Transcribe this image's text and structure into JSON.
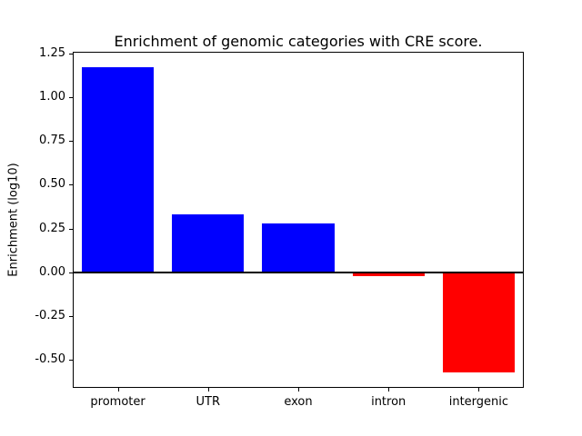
{
  "figure": {
    "background": "#ffffff"
  },
  "chart_data": {
    "type": "bar",
    "title": "Enrichment of genomic categories with CRE score.",
    "xlabel": "",
    "ylabel": "Enrichment (log10)",
    "categories": [
      "promoter",
      "UTR",
      "exon",
      "intron",
      "intergenic"
    ],
    "values": [
      1.17,
      0.33,
      0.28,
      -0.02,
      -0.57
    ],
    "positive_color": "#0000ff",
    "negative_color": "#ff0000",
    "zero_line_color": "#000000",
    "ylim": [
      -0.66,
      1.26
    ],
    "yticks": [
      -0.5,
      -0.25,
      0.0,
      0.25,
      0.5,
      0.75,
      1.0,
      1.25
    ],
    "grid": false,
    "legend": "none",
    "bar_width_fraction": 0.8
  }
}
